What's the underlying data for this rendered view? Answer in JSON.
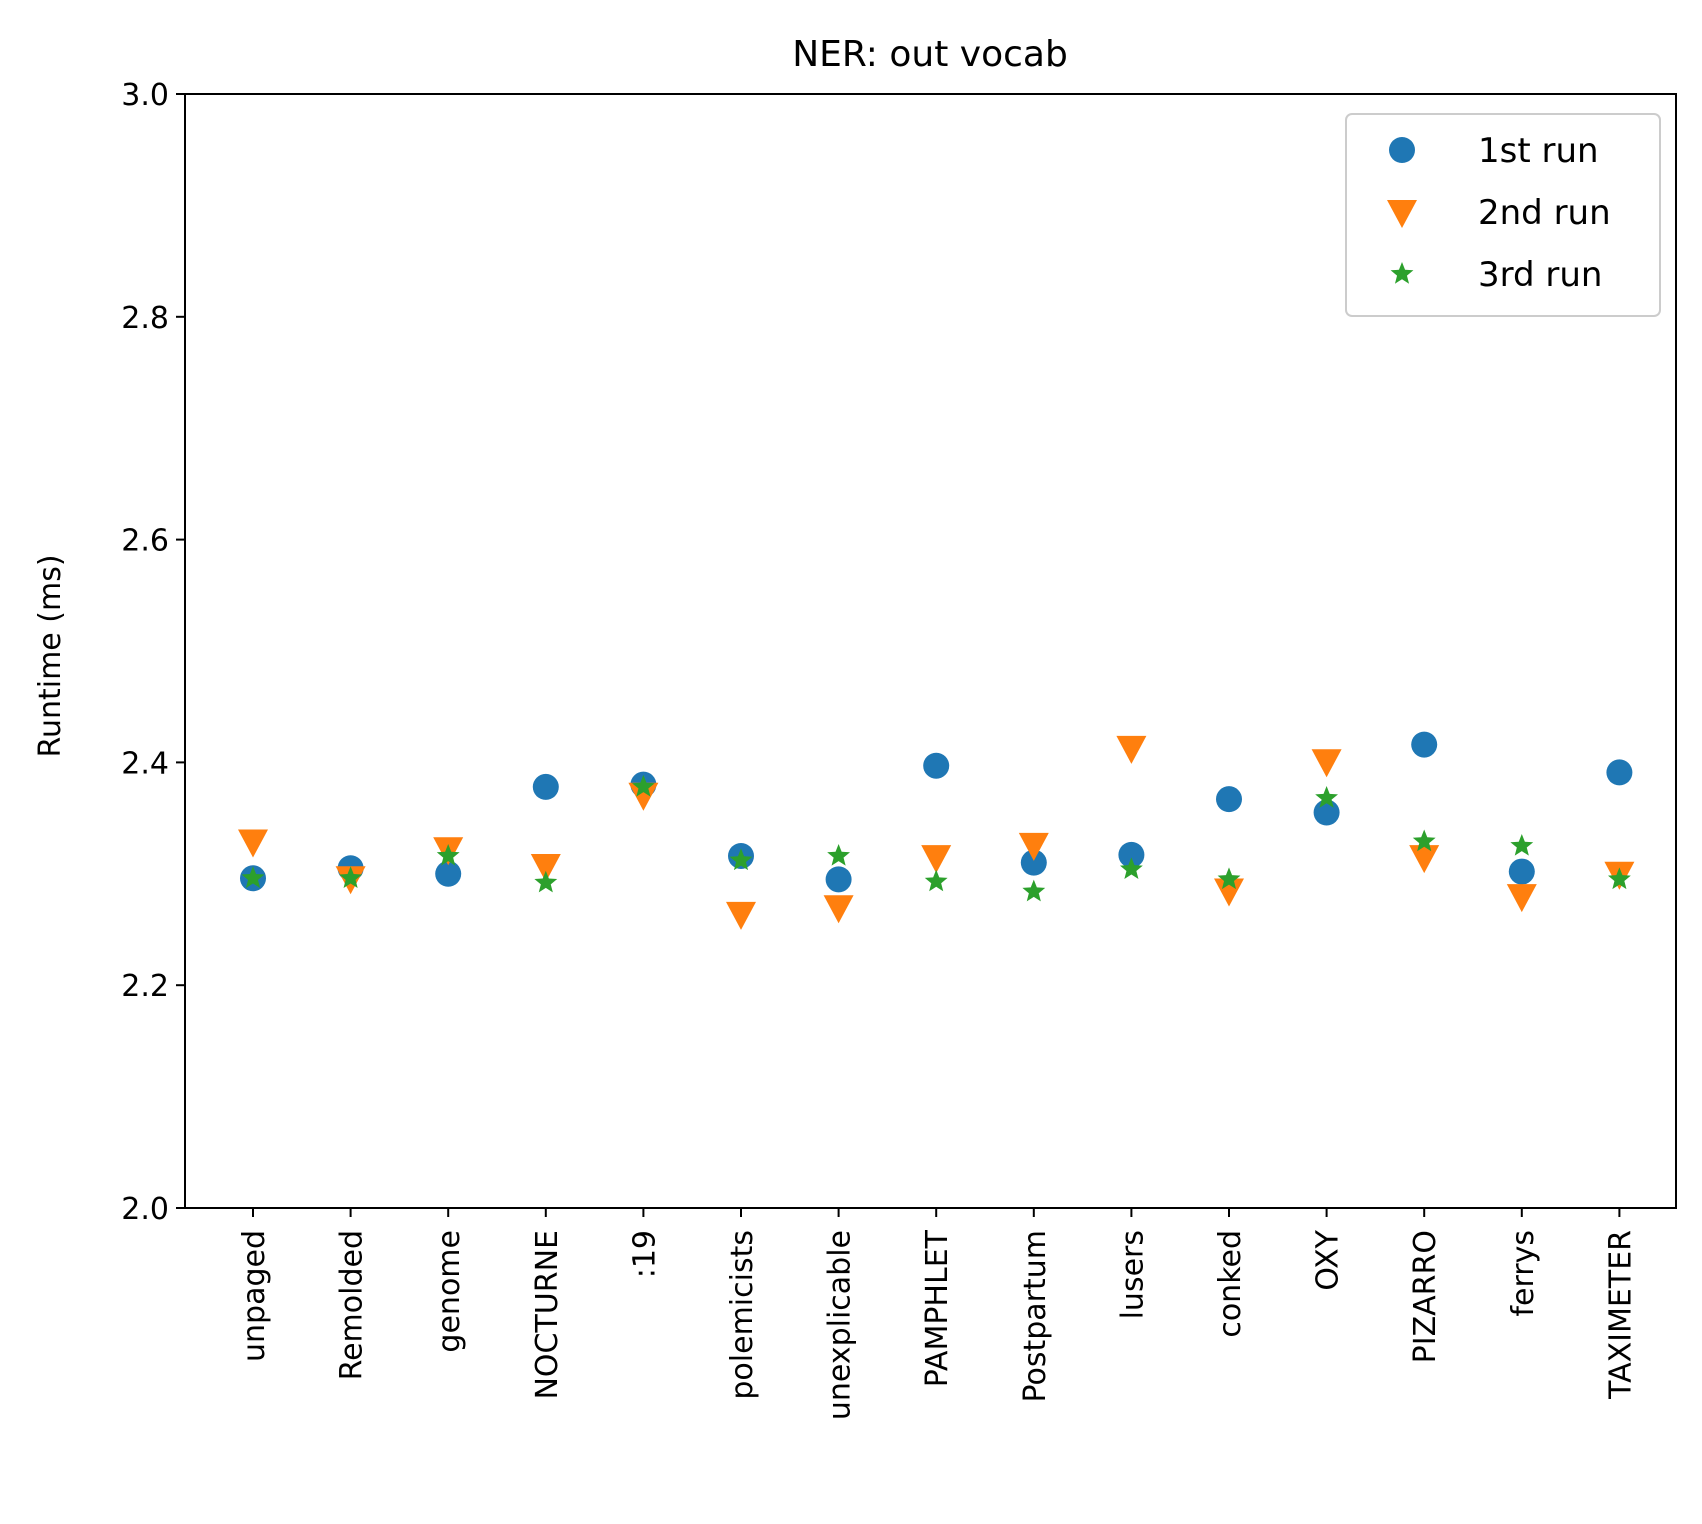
{
  "chart_data": {
    "type": "scatter",
    "title": "NER: out vocab",
    "xlabel": "",
    "ylabel": "Runtime (ms)",
    "ylim": [
      2.0,
      3.0
    ],
    "yticks": [
      "2.0",
      "2.2",
      "2.4",
      "2.6",
      "2.8",
      "3.0"
    ],
    "grid": false,
    "legend_position": "upper right",
    "categories": [
      "unpaged",
      "Remolded",
      "genome",
      "NOCTURNE",
      ":19",
      "polemicists",
      "unexplicable",
      "PAMPHLET",
      "Postpartum",
      "lusers",
      "conked",
      "OXY",
      "PIZARRO",
      "ferrys",
      "TAXIMETER"
    ],
    "series": [
      {
        "name": "1st run",
        "marker": "circle",
        "color": "#1f77b4",
        "values": [
          2.296,
          2.305,
          2.3,
          2.378,
          2.38,
          2.316,
          2.295,
          2.397,
          2.31,
          2.317,
          2.367,
          2.355,
          2.416,
          2.302,
          2.391
        ]
      },
      {
        "name": "2nd run",
        "marker": "triangle-down",
        "color": "#ff7f0e",
        "values": [
          2.329,
          2.296,
          2.322,
          2.307,
          2.371,
          2.264,
          2.27,
          2.315,
          2.326,
          2.413,
          2.285,
          2.401,
          2.315,
          2.28,
          2.3
        ]
      },
      {
        "name": "3rd run",
        "marker": "star",
        "color": "#2ca02c",
        "values": [
          2.296,
          2.296,
          2.316,
          2.292,
          2.378,
          2.312,
          2.316,
          2.293,
          2.284,
          2.304,
          2.295,
          2.368,
          2.329,
          2.325,
          2.295
        ]
      }
    ]
  }
}
